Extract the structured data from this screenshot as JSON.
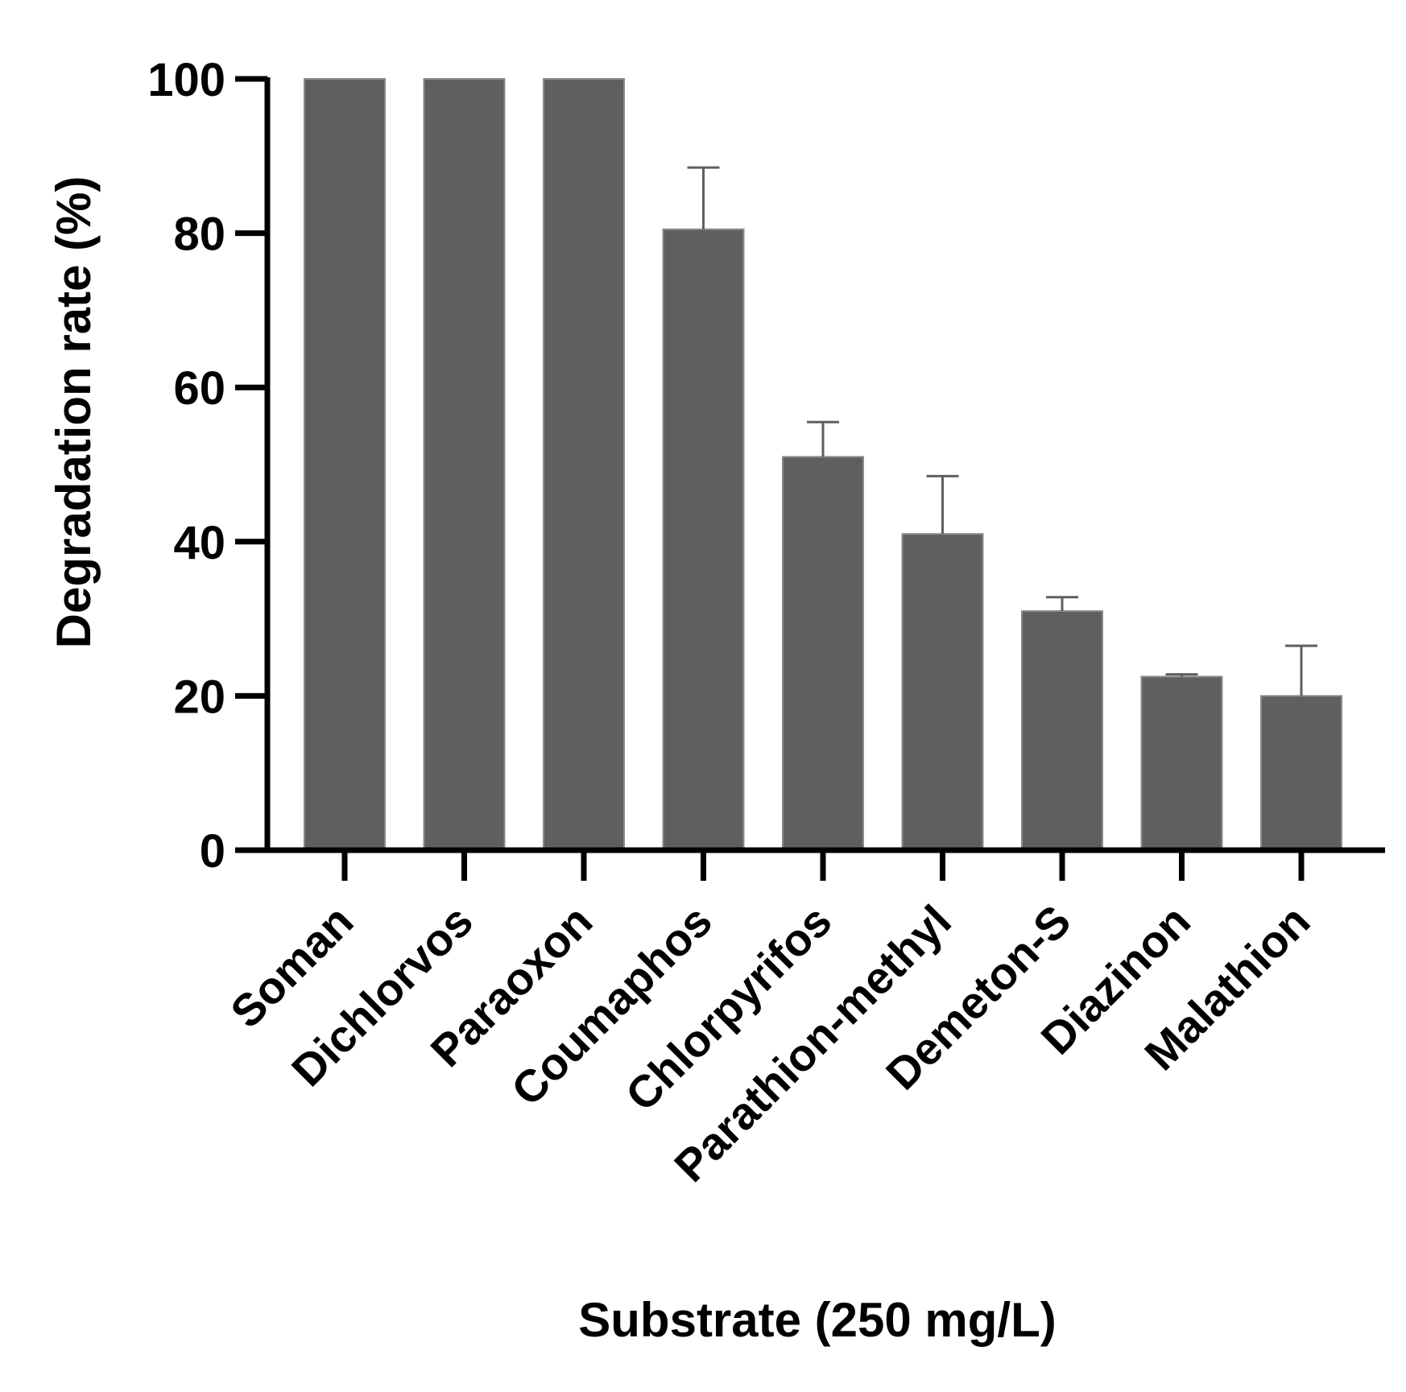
{
  "chart_data": {
    "type": "bar",
    "title": "",
    "xlabel": "Substrate (250 mg/L)",
    "ylabel": "Degradation rate (%)",
    "ylim": [
      0,
      100
    ],
    "yticks": [
      0,
      20,
      40,
      60,
      80,
      100
    ],
    "grid": false,
    "categories": [
      "Soman",
      "Dichlorvos",
      "Paraoxon",
      "Coumaphos",
      "Chlorpyrifos",
      "Parathion-methyl",
      "Demeton-S",
      "Diazinon",
      "Malathion"
    ],
    "values": [
      100,
      100,
      100,
      80.5,
      51,
      41,
      31,
      22.5,
      20
    ],
    "error_upper": [
      0,
      0,
      0,
      8,
      4.5,
      7.5,
      1.8,
      0.3,
      6.5
    ],
    "colors": {
      "bar": "#5f5f5f",
      "bar_edge": "#8a8a8a",
      "axis": "#000000",
      "error_bar": "#5f5f5f"
    }
  }
}
